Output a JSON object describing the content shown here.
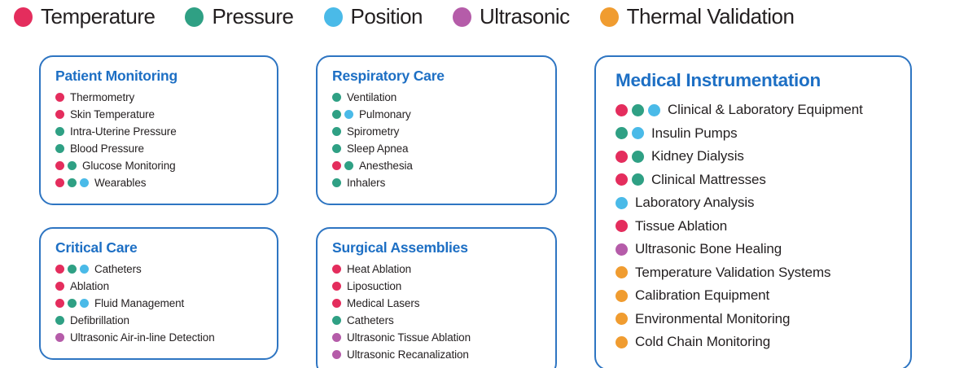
{
  "colors": {
    "temperature": "#E42D5D",
    "pressure": "#2FA084",
    "position": "#4ABAE8",
    "ultrasonic": "#B55CA9",
    "thermal_validation": "#F09C30",
    "box_border": "#2E75C2",
    "heading": "#1D6FC4",
    "text": "#231F20"
  },
  "legend": {
    "items": [
      {
        "label": "Temperature",
        "color_key": "temperature"
      },
      {
        "label": "Pressure",
        "color_key": "pressure"
      },
      {
        "label": "Position",
        "color_key": "position"
      },
      {
        "label": "Ultrasonic",
        "color_key": "ultrasonic"
      },
      {
        "label": "Thermal Validation",
        "color_key": "thermal_validation"
      }
    ]
  },
  "boxes": [
    {
      "title": "Patient Monitoring",
      "items": [
        {
          "label": "Thermometry",
          "dots": [
            "temperature"
          ]
        },
        {
          "label": "Skin Temperature",
          "dots": [
            "temperature"
          ]
        },
        {
          "label": "Intra-Uterine Pressure",
          "dots": [
            "pressure"
          ]
        },
        {
          "label": "Blood Pressure",
          "dots": [
            "pressure"
          ]
        },
        {
          "label": "Glucose Monitoring",
          "dots": [
            "temperature",
            "pressure"
          ]
        },
        {
          "label": "Wearables",
          "dots": [
            "temperature",
            "pressure",
            "position"
          ]
        }
      ]
    },
    {
      "title": "Critical Care",
      "items": [
        {
          "label": "Catheters",
          "dots": [
            "temperature",
            "pressure",
            "position"
          ]
        },
        {
          "label": "Ablation",
          "dots": [
            "temperature"
          ]
        },
        {
          "label": "Fluid Management",
          "dots": [
            "temperature",
            "pressure",
            "position"
          ]
        },
        {
          "label": "Defibrillation",
          "dots": [
            "pressure"
          ]
        },
        {
          "label": "Ultrasonic Air-in-line Detection",
          "dots": [
            "ultrasonic"
          ]
        }
      ]
    },
    {
      "title": "Respiratory Care",
      "items": [
        {
          "label": "Ventilation",
          "dots": [
            "pressure"
          ]
        },
        {
          "label": "Pulmonary",
          "dots": [
            "pressure",
            "position"
          ]
        },
        {
          "label": "Spirometry",
          "dots": [
            "pressure"
          ]
        },
        {
          "label": "Sleep Apnea",
          "dots": [
            "pressure"
          ]
        },
        {
          "label": "Anesthesia",
          "dots": [
            "temperature",
            "pressure"
          ]
        },
        {
          "label": "Inhalers",
          "dots": [
            "pressure"
          ]
        }
      ]
    },
    {
      "title": "Surgical Assemblies",
      "items": [
        {
          "label": "Heat Ablation",
          "dots": [
            "temperature"
          ]
        },
        {
          "label": "Liposuction",
          "dots": [
            "temperature"
          ]
        },
        {
          "label": "Medical Lasers",
          "dots": [
            "temperature"
          ]
        },
        {
          "label": "Catheters",
          "dots": [
            "pressure"
          ]
        },
        {
          "label": "Ultrasonic Tissue Ablation",
          "dots": [
            "ultrasonic"
          ]
        },
        {
          "label": "Ultrasonic Recanalization",
          "dots": [
            "ultrasonic"
          ]
        }
      ]
    },
    {
      "title": "Medical Instrumentation",
      "items": [
        {
          "label": "Clinical & Laboratory Equipment",
          "dots": [
            "temperature",
            "pressure",
            "position"
          ]
        },
        {
          "label": "Insulin Pumps",
          "dots": [
            "pressure",
            "position"
          ]
        },
        {
          "label": "Kidney Dialysis",
          "dots": [
            "temperature",
            "pressure"
          ]
        },
        {
          "label": "Clinical Mattresses",
          "dots": [
            "temperature",
            "pressure"
          ]
        },
        {
          "label": "Laboratory Analysis",
          "dots": [
            "position"
          ]
        },
        {
          "label": "Tissue Ablation",
          "dots": [
            "temperature"
          ]
        },
        {
          "label": "Ultrasonic Bone Healing",
          "dots": [
            "ultrasonic"
          ]
        },
        {
          "label": "Temperature Validation Systems",
          "dots": [
            "thermal_validation"
          ]
        },
        {
          "label": "Calibration Equipment",
          "dots": [
            "thermal_validation"
          ]
        },
        {
          "label": "Environmental Monitoring",
          "dots": [
            "thermal_validation"
          ]
        },
        {
          "label": "Cold Chain Monitoring",
          "dots": [
            "thermal_validation"
          ]
        }
      ]
    }
  ]
}
